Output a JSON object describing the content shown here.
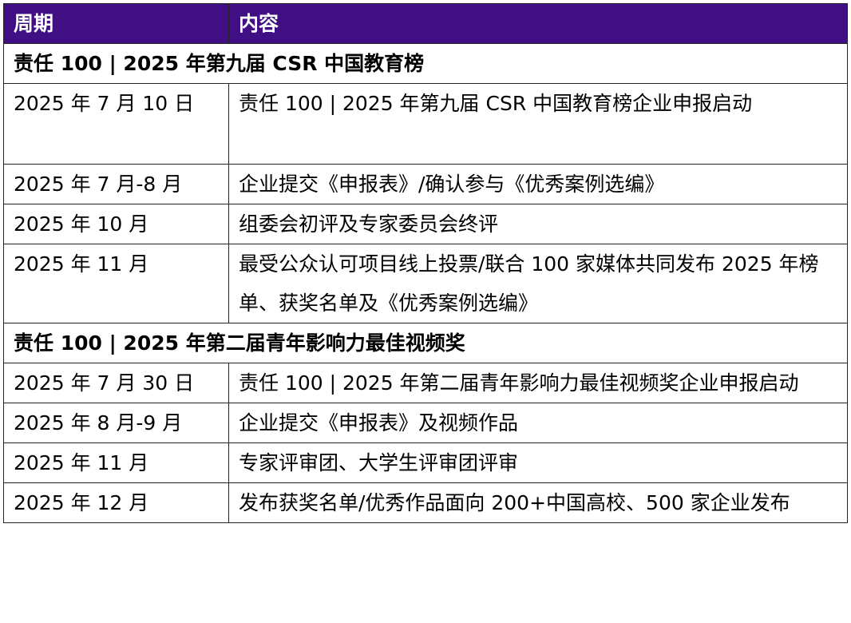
{
  "header": {
    "col1": "周期",
    "col2": "内容",
    "bg_color": "#3f0f83"
  },
  "sections": [
    {
      "title": "责任 100 | 2025 年第九届 CSR 中国教育榜",
      "rows": [
        {
          "period": "2025 年 7 月 10 日",
          "content": "责任 100 | 2025 年第九届 CSR 中国教育榜企业申报启动"
        },
        {
          "period": "2025 年 7 月-8 月",
          "content": "企业提交《申报表》/确认参与《优秀案例选编》"
        },
        {
          "period": "2025 年 10 月",
          "content": "组委会初评及专家委员会终评"
        },
        {
          "period": "2025 年 11 月",
          "content": "最受公众认可项目线上投票/联合 100 家媒体共同发布 2025 年榜单、获奖名单及《优秀案例选编》"
        }
      ]
    },
    {
      "title": "责任 100 | 2025 年第二届青年影响力最佳视频奖",
      "rows": [
        {
          "period": "2025 年 7 月 30 日",
          "content": "责任 100 | 2025 年第二届青年影响力最佳视频奖企业申报启动"
        },
        {
          "period": "2025 年 8 月-9 月",
          "content": "企业提交《申报表》及视频作品"
        },
        {
          "period": "2025 年 11 月",
          "content": "专家评审团、大学生评审团评审"
        },
        {
          "period": "2025 年 12 月",
          "content": "发布获奖名单/优秀作品面向 200+中国高校、500 家企业发布"
        }
      ]
    }
  ]
}
